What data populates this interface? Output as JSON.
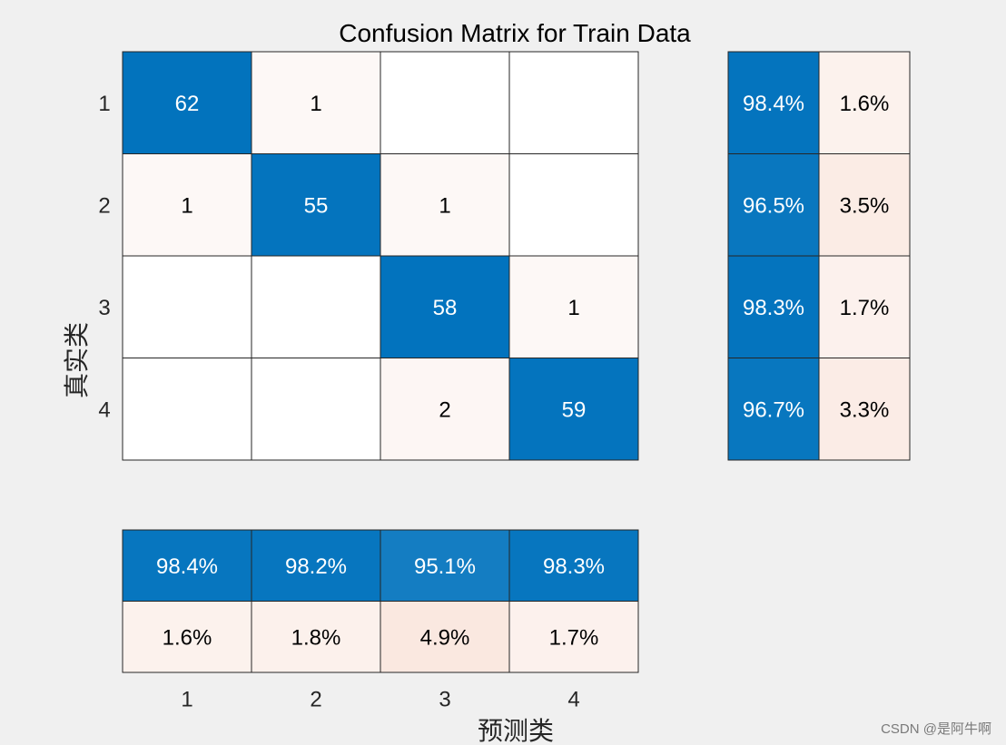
{
  "chart_data": {
    "type": "heatmap",
    "title": "Confusion Matrix for Train Data",
    "xlabel": "预测类",
    "ylabel": "真实类",
    "classes": [
      "1",
      "2",
      "3",
      "4"
    ],
    "matrix": [
      [
        62,
        1,
        null,
        null
      ],
      [
        1,
        55,
        1,
        null
      ],
      [
        null,
        null,
        58,
        1
      ],
      [
        null,
        null,
        2,
        59
      ]
    ],
    "row_summary": [
      [
        "98.4%",
        "1.6%"
      ],
      [
        "96.5%",
        "3.5%"
      ],
      [
        "98.3%",
        "1.7%"
      ],
      [
        "96.7%",
        "3.3%"
      ]
    ],
    "column_summary": [
      [
        "98.4%",
        "98.2%",
        "95.1%",
        "98.3%"
      ],
      [
        "1.6%",
        "1.8%",
        "4.9%",
        "1.7%"
      ]
    ],
    "colors": {
      "correct": "#0072bd",
      "incorrect": "#d95319",
      "background": "#f0f0f0"
    }
  },
  "watermark": "CSDN @是阿牛啊"
}
